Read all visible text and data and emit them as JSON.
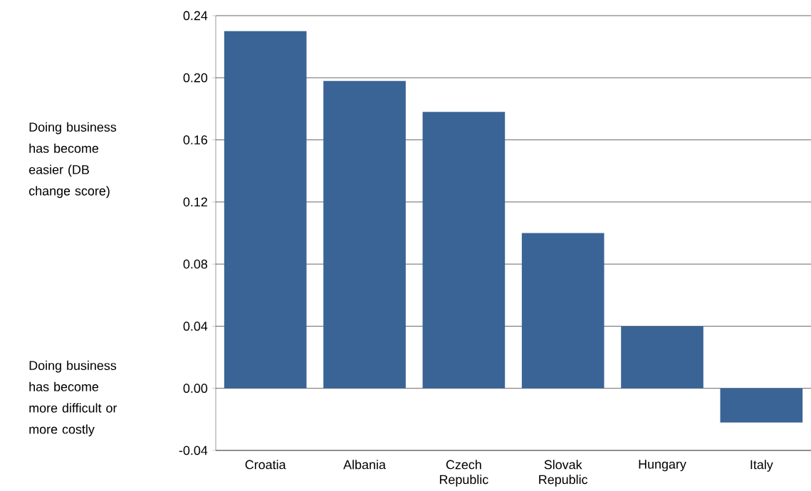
{
  "chart_data": {
    "type": "bar",
    "categories": [
      "Croatia",
      "Albania",
      "Czech Republic",
      "Slovak Republic",
      "Hungary",
      "Italy"
    ],
    "values": [
      0.23,
      0.198,
      0.178,
      0.1,
      0.04,
      -0.022
    ],
    "color": "#3a6496",
    "ylim": [
      -0.04,
      0.24
    ],
    "yticks": [
      {
        "value": -0.04,
        "label": "-0.04"
      },
      {
        "value": 0,
        "label": "0.00"
      },
      {
        "value": 0.04,
        "label": "0.04"
      },
      {
        "value": 0.08,
        "label": "0.08"
      },
      {
        "value": 0.12,
        "label": "0.12"
      },
      {
        "value": 0.16,
        "label": "0.16"
      },
      {
        "value": 0.2,
        "label": "0.20"
      },
      {
        "value": 0.24,
        "label": "0.24"
      }
    ],
    "grid": "y",
    "annotations": [
      "Doing business has become easier (DB change score)",
      "Doing business has become more difficult or more costly"
    ]
  }
}
